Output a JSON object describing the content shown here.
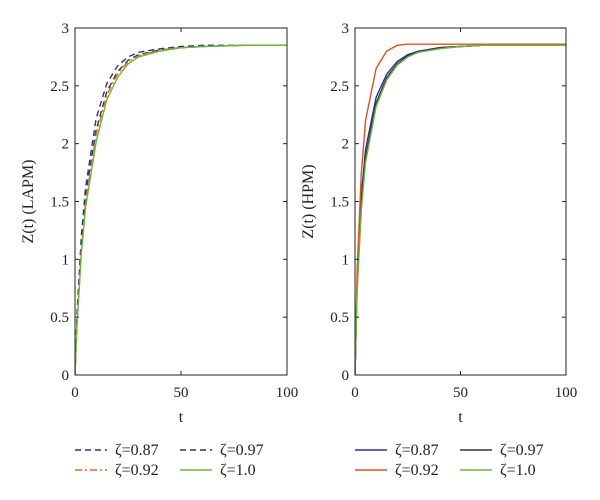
{
  "chart_data": [
    {
      "type": "line",
      "xlabel": "t",
      "ylabel": "Z(t) (LAPM)",
      "xlim": [
        0,
        100
      ],
      "ylim": [
        0,
        3
      ],
      "xticks": [
        "0",
        "50",
        "100"
      ],
      "yticks": [
        "0",
        "0.5",
        "1",
        "1.5",
        "2",
        "2.5",
        "3"
      ],
      "grid": false,
      "legend_position": "below",
      "series": [
        {
          "name": "ζ=0.87",
          "color": "#2b2f9a",
          "dash": "dashed",
          "x": [
            0,
            1,
            3,
            5,
            10,
            15,
            20,
            25,
            30,
            40,
            50,
            60,
            80,
            100
          ],
          "y": [
            0,
            0.55,
            1.2,
            1.62,
            2.22,
            2.52,
            2.67,
            2.75,
            2.79,
            2.82,
            2.84,
            2.85,
            2.85,
            2.85
          ]
        },
        {
          "name": "ζ=0.97",
          "color": "#333333",
          "dash": "dashed",
          "x": [
            0,
            1,
            3,
            5,
            10,
            15,
            20,
            25,
            30,
            40,
            50,
            60,
            80,
            100
          ],
          "y": [
            0,
            0.5,
            1.12,
            1.55,
            2.12,
            2.45,
            2.62,
            2.72,
            2.77,
            2.81,
            2.83,
            2.84,
            2.85,
            2.85
          ]
        },
        {
          "name": "ζ=0.92",
          "color": "#e06a2a",
          "dash": "dashdot",
          "x": [
            0,
            1,
            3,
            5,
            10,
            15,
            20,
            25,
            30,
            40,
            50,
            60,
            80,
            100
          ],
          "y": [
            0,
            0.47,
            1.08,
            1.5,
            2.08,
            2.42,
            2.6,
            2.71,
            2.76,
            2.81,
            2.83,
            2.84,
            2.85,
            2.85
          ]
        },
        {
          "name": "ζ=1.0",
          "color": "#6cb63c",
          "dash": "solid",
          "x": [
            0,
            1,
            3,
            5,
            10,
            15,
            20,
            25,
            30,
            40,
            50,
            60,
            80,
            100
          ],
          "y": [
            0,
            0.45,
            1.05,
            1.45,
            2.02,
            2.38,
            2.57,
            2.69,
            2.75,
            2.8,
            2.83,
            2.84,
            2.85,
            2.85
          ]
        }
      ]
    },
    {
      "type": "line",
      "xlabel": "t",
      "ylabel": "Z(t) (HPM)",
      "xlim": [
        0,
        100
      ],
      "ylim": [
        0,
        3
      ],
      "xticks": [
        "0",
        "50",
        "100"
      ],
      "yticks": [
        "0",
        "0.5",
        "1",
        "1.5",
        "2",
        "2.5",
        "3"
      ],
      "grid": false,
      "legend_position": "below",
      "series": [
        {
          "name": "ζ=0.87",
          "color": "#2b2f9a",
          "dash": "solid",
          "x": [
            0,
            1,
            3,
            5,
            10,
            15,
            20,
            25,
            30,
            40,
            50,
            60,
            80,
            100
          ],
          "y": [
            0,
            0.8,
            1.55,
            1.95,
            2.4,
            2.6,
            2.71,
            2.77,
            2.8,
            2.83,
            2.84,
            2.85,
            2.85,
            2.85
          ]
        },
        {
          "name": "ζ=0.97",
          "color": "#333333",
          "dash": "solid",
          "x": [
            0,
            1,
            3,
            5,
            10,
            15,
            20,
            25,
            30,
            40,
            50,
            60,
            80,
            100
          ],
          "y": [
            0,
            0.75,
            1.48,
            1.88,
            2.35,
            2.57,
            2.69,
            2.76,
            2.79,
            2.83,
            2.84,
            2.85,
            2.85,
            2.85
          ]
        },
        {
          "name": "ζ=0.92",
          "color": "#e0501e",
          "dash": "solid",
          "x": [
            0,
            1,
            3,
            5,
            10,
            15,
            20,
            25,
            30,
            40,
            50,
            60,
            80,
            100
          ],
          "y": [
            0,
            0.9,
            1.75,
            2.2,
            2.65,
            2.8,
            2.85,
            2.86,
            2.86,
            2.86,
            2.86,
            2.86,
            2.86,
            2.86
          ]
        },
        {
          "name": "ζ=1.0",
          "color": "#6cb63c",
          "dash": "solid",
          "x": [
            0,
            1,
            3,
            5,
            10,
            15,
            20,
            25,
            30,
            40,
            50,
            60,
            80,
            100
          ],
          "y": [
            0,
            0.72,
            1.43,
            1.84,
            2.32,
            2.55,
            2.68,
            2.75,
            2.79,
            2.82,
            2.84,
            2.85,
            2.85,
            2.85
          ]
        }
      ]
    }
  ]
}
